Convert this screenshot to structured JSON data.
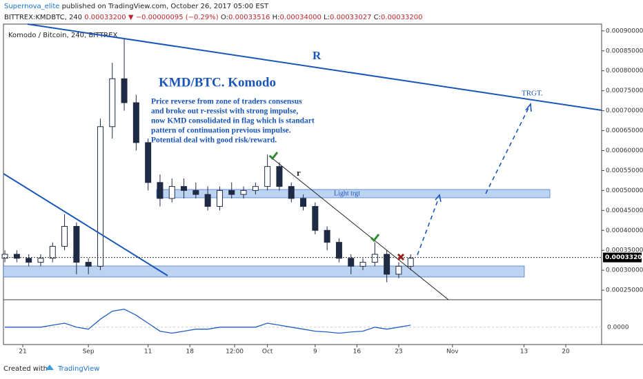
{
  "header": {
    "author": "Supernova_elite",
    "published": " published on TradingView.com, October 26, 2017 05:00 EST",
    "line2": [
      {
        "text": "BITTREX:KMDBTC, 240 ",
        "color": "#222"
      },
      {
        "text": "0.00033200",
        "color": "#c0262d"
      },
      {
        "text": " ▼ ",
        "color": "#c0262d"
      },
      {
        "text": "−0.00000095 (−0.29%)",
        "color": "#c0262d"
      },
      {
        "text": " O:",
        "color": "#222"
      },
      {
        "text": "0.00033516",
        "color": "#c0262d"
      },
      {
        "text": " H:",
        "color": "#222"
      },
      {
        "text": "0.00034000",
        "color": "#c0262d"
      },
      {
        "text": " L:",
        "color": "#222"
      },
      {
        "text": "0.00033027",
        "color": "#c0262d"
      },
      {
        "text": " C:",
        "color": "#222"
      },
      {
        "text": "0.00033200",
        "color": "#c0262d"
      }
    ]
  },
  "chart_data": {
    "type": "candlestick",
    "title": "Komodo / Bitcoin, 240, BITTREX",
    "color": "#1f2a44",
    "x": [
      -3,
      -1,
      1,
      3,
      5,
      7,
      9,
      11,
      13,
      15,
      17,
      19,
      21,
      23,
      25,
      27,
      29,
      31,
      33,
      35,
      37,
      39,
      41,
      43,
      45,
      47,
      49,
      51,
      53,
      55,
      57,
      59,
      61,
      63,
      65
    ],
    "open": [
      0.00033,
      0.00034,
      0.00033,
      0.00032,
      0.00033,
      0.00036,
      0.00041,
      0.00032,
      0.00031,
      0.00066,
      0.00078,
      0.00072,
      0.00062,
      0.00052,
      0.00048,
      0.00051,
      0.0005,
      0.00049,
      0.00046,
      0.0005,
      0.00049,
      0.0005,
      0.00051,
      0.00056,
      0.00051,
      0.00048,
      0.00046,
      0.0004,
      0.00037,
      0.00033,
      0.00031,
      0.00032,
      0.00034,
      0.00029,
      0.00031
    ],
    "high": [
      0.00035,
      0.00035,
      0.00034,
      0.00034,
      0.00037,
      0.00044,
      0.00042,
      0.00033,
      0.00068,
      0.00082,
      0.00088,
      0.00074,
      0.00063,
      0.00054,
      0.00053,
      0.00053,
      0.00052,
      0.00051,
      0.00051,
      0.00052,
      0.00051,
      0.00052,
      0.00059,
      0.00057,
      0.00052,
      0.00049,
      0.00047,
      0.00041,
      0.00038,
      0.00034,
      0.00033,
      0.00037,
      0.00035,
      0.00032,
      0.00034
    ],
    "low": [
      0.00032,
      0.00032,
      0.00031,
      0.00031,
      0.00032,
      0.00035,
      0.00029,
      0.00029,
      0.0003,
      0.00063,
      0.0007,
      0.0006,
      0.0005,
      0.00046,
      0.00047,
      0.00048,
      0.00048,
      0.00045,
      0.00045,
      0.00048,
      0.00048,
      0.00049,
      0.0005,
      0.0005,
      0.00047,
      0.00045,
      0.00039,
      0.00035,
      0.00032,
      0.00029,
      0.0003,
      0.00031,
      0.00027,
      0.00028,
      0.0003
    ],
    "close": [
      0.00034,
      0.00033,
      0.00032,
      0.00033,
      0.00036,
      0.00041,
      0.00032,
      0.00031,
      0.00066,
      0.00078,
      0.00072,
      0.00062,
      0.00052,
      0.00048,
      0.00051,
      0.0005,
      0.00049,
      0.00046,
      0.0005,
      0.00049,
      0.0005,
      0.00051,
      0.00056,
      0.00051,
      0.00048,
      0.00046,
      0.0004,
      0.00037,
      0.00033,
      0.00031,
      0.00032,
      0.00034,
      0.00029,
      0.00031,
      0.00033
    ],
    "xlim": [
      -3.24,
      97
    ],
    "xticks": [
      {
        "value": 0,
        "label": "21"
      },
      {
        "value": 11,
        "label": "Sep"
      },
      {
        "value": 21,
        "label": "11"
      },
      {
        "value": 28,
        "label": "18"
      },
      {
        "value": 35.5,
        "label": "12:00"
      },
      {
        "value": 41,
        "label": "Oct"
      },
      {
        "value": 49,
        "label": "9"
      },
      {
        "value": 56,
        "label": "16"
      },
      {
        "value": 63,
        "label": "23"
      },
      {
        "value": 72,
        "label": "Nov"
      },
      {
        "value": 84,
        "label": "13"
      },
      {
        "value": 91,
        "label": "20"
      }
    ],
    "ylim": [
      0.000226,
      0.000917
    ],
    "yticks": [
      {
        "value": 0.00025,
        "label": "0.00025000"
      },
      {
        "value": 0.0003,
        "label": "0.00030000"
      },
      {
        "value": 0.00035,
        "label": "0.00035000"
      },
      {
        "value": 0.0004,
        "label": "0.00040000"
      },
      {
        "value": 0.00045,
        "label": "0.00045000"
      },
      {
        "value": 0.0005,
        "label": "0.00050000"
      },
      {
        "value": 0.00055,
        "label": "0.00055000"
      },
      {
        "value": 0.0006,
        "label": "0.00060000"
      },
      {
        "value": 0.00065,
        "label": "0.00065000"
      },
      {
        "value": 0.0007,
        "label": "0.00070000"
      },
      {
        "value": 0.00075,
        "label": "0.00075000"
      },
      {
        "value": 0.0008,
        "label": "0.00080000"
      },
      {
        "value": 0.00085,
        "label": "0.00085000"
      },
      {
        "value": 0.0009,
        "label": "0.00090000"
      }
    ],
    "last_price": {
      "value": 0.000332,
      "label": "0.00033200"
    },
    "macd": {
      "color": "#1f5fbf",
      "values": [
        0,
        0,
        0,
        0,
        5e-06,
        1e-05,
        0,
        -5e-06,
        2e-05,
        4e-05,
        4.5e-05,
        3e-05,
        1e-05,
        -1e-05,
        -1.5e-05,
        -1e-05,
        -5e-06,
        -5e-06,
        0,
        0,
        0,
        0,
        1e-05,
        5e-06,
        0,
        -5e-06,
        -1e-05,
        -1.2e-05,
        -1.5e-05,
        -1.2e-05,
        -1e-05,
        0,
        -5e-06,
        0,
        5e-06
      ],
      "ylim": [
        -4e-05,
        6e-05
      ],
      "yticks": [
        {
          "value": 0,
          "label": "0.0000"
        }
      ]
    },
    "annotations": {
      "R": "R",
      "target": "TRGT.",
      "heading": "KMD/BTC. Komodo",
      "r": "r",
      "light_target": "Light trgt",
      "paragraph": [
        "Price reverse from zone of traders consensus",
        "and broke out r-ressist with strong impulse,",
        "now KMD consolidated in flag which is standart",
        "pattern of continuation previous impulse.",
        "Potential deal with good risk/reward."
      ]
    }
  },
  "footer": {
    "created": "Created with",
    "brand": "TradingView"
  }
}
